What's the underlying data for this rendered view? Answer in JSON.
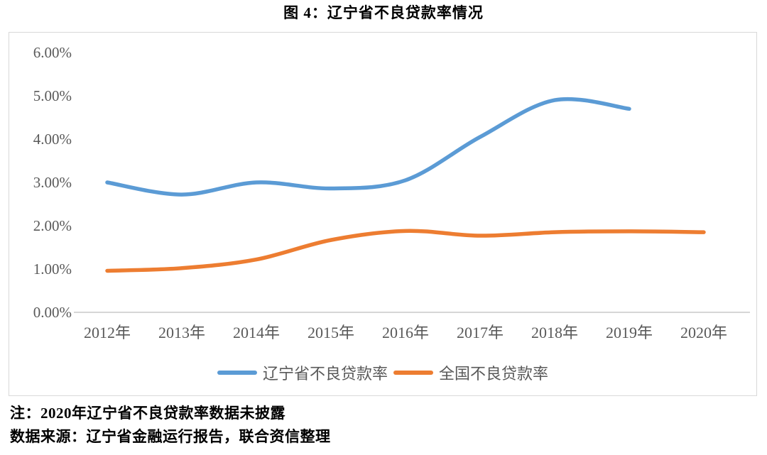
{
  "page": {
    "title": "图 4：辽宁省不良贷款率情况",
    "note": "注：2020年辽宁省不良贷款率数据未披露",
    "source": "数据来源：辽宁省金融运行报告，联合资信整理"
  },
  "chart_data": {
    "type": "line",
    "title": "图 4：辽宁省不良贷款率情况",
    "categories": [
      "2012年",
      "2013年",
      "2014年",
      "2015年",
      "2016年",
      "2017年",
      "2018年",
      "2019年",
      "2020年"
    ],
    "series": [
      {
        "name": "辽宁省不良贷款率",
        "color": "#5B9BD5",
        "values": [
          3.0,
          2.72,
          3.0,
          2.86,
          3.05,
          4.05,
          4.9,
          4.7,
          null
        ]
      },
      {
        "name": "全国不良贷款率",
        "color": "#ED7D31",
        "values": [
          0.96,
          1.02,
          1.22,
          1.67,
          1.88,
          1.77,
          1.85,
          1.87,
          1.85
        ]
      }
    ],
    "xlabel": "",
    "ylabel": "",
    "ylim": [
      0,
      6
    ],
    "yticks": [
      {
        "value": 0,
        "label": "0.00%"
      },
      {
        "value": 1,
        "label": "1.00%"
      },
      {
        "value": 2,
        "label": "2.00%"
      },
      {
        "value": 3,
        "label": "3.00%"
      },
      {
        "value": 4,
        "label": "4.00%"
      },
      {
        "value": 5,
        "label": "5.00%"
      },
      {
        "value": 6,
        "label": "6.00%"
      }
    ],
    "grid": false,
    "smooth": true,
    "legend_position": "bottom",
    "axis_line_color": "#C8C8C8",
    "label_color": "#595959"
  }
}
